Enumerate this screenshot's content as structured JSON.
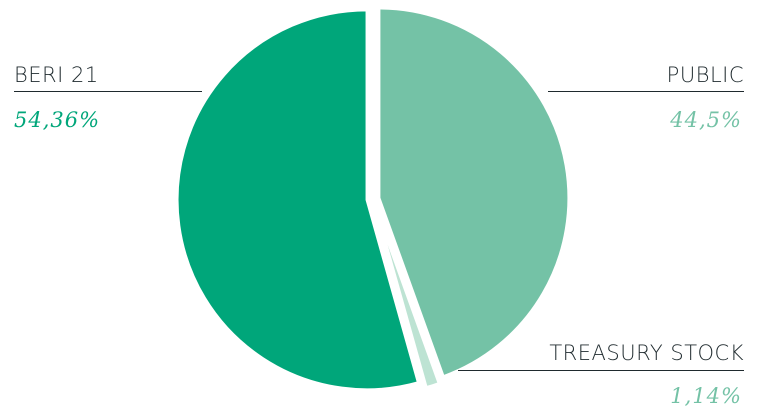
{
  "chart_data": {
    "type": "pie",
    "title": "",
    "slices": [
      {
        "name": "PUBLIC",
        "value": 44.5,
        "display": "44,5%",
        "color": "#74c2a6"
      },
      {
        "name": "TREASURY STOCK",
        "value": 1.14,
        "display": "1,14%",
        "color": "#bde3d3"
      },
      {
        "name": "BERI 21",
        "value": 54.36,
        "display": "54,36%",
        "color": "#00a67a"
      }
    ],
    "start_angle_deg": 0,
    "direction": "clockwise",
    "exploded": true,
    "legend": "callout labels with rules"
  },
  "labels": {
    "beri_name": "BERI 21",
    "beri_value": "54,36%",
    "public_name": "PUBLIC",
    "public_value": "44,5%",
    "treasury_name": "TREASURY STOCK",
    "treasury_value": "1,14%"
  },
  "colors": {
    "text": "#1f2a2e",
    "beri": "#00a67a",
    "public": "#74c2a6",
    "treasury": "#bde3d3"
  }
}
